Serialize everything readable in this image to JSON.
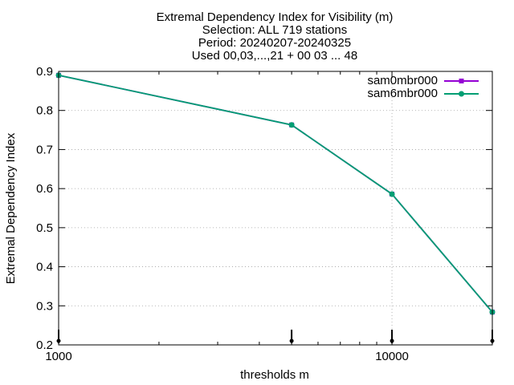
{
  "chart_data": {
    "type": "line",
    "title_lines": [
      "Extremal Dependency Index  for Visibility (m)",
      "Selection: ALL    719 stations",
      "Period: 20240207-20240325",
      "Used 00,03,...,21 + 00 03 ... 48"
    ],
    "xlabel": "thresholds m",
    "ylabel": "Extremal Dependency Index",
    "x_scale": "log",
    "xlim": [
      1000,
      20000
    ],
    "ylim": [
      0.2,
      0.9
    ],
    "x_ticks": [
      {
        "value": 1000,
        "label": "1000"
      },
      {
        "value": 10000,
        "label": "10000"
      }
    ],
    "y_ticks": [
      {
        "value": 0.2,
        "label": "0.2"
      },
      {
        "value": 0.3,
        "label": "0.3"
      },
      {
        "value": 0.4,
        "label": "0.4"
      },
      {
        "value": 0.5,
        "label": "0.5"
      },
      {
        "value": 0.6,
        "label": "0.6"
      },
      {
        "value": 0.7,
        "label": "0.7"
      },
      {
        "value": 0.8,
        "label": "0.8"
      },
      {
        "value": 0.9,
        "label": "0.9"
      }
    ],
    "grid": true,
    "legend_position": "top-right",
    "series": [
      {
        "name": "sam0mbr000",
        "color": "#9400d3",
        "x": [
          1000,
          5000,
          10000,
          20000
        ],
        "y": [
          0.89,
          0.763,
          0.586,
          0.284
        ]
      },
      {
        "name": "sam6mbr000",
        "color": "#009e73",
        "x": [
          1000,
          5000,
          10000,
          20000
        ],
        "y": [
          0.89,
          0.763,
          0.586,
          0.284
        ]
      }
    ]
  }
}
